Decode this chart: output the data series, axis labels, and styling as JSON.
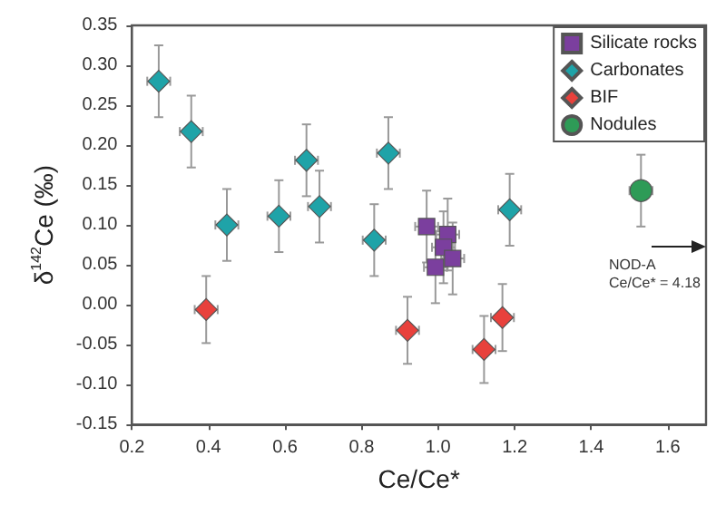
{
  "chart_data": {
    "type": "scatter",
    "xlabel": "Ce/Ce*",
    "ylabel": "δ$^{142}$Ce (‰)",
    "xlim": [
      0.2,
      1.7
    ],
    "xticks": [
      0.2,
      0.4,
      0.6,
      0.8,
      {
        "value": 1,
        "label": "1.0"
      },
      1.2,
      1.4,
      1.6
    ],
    "ylim": [
      -0.15,
      0.35
    ],
    "yticks": [
      -0.15,
      {
        "value": -0.1,
        "label": "-0.10"
      },
      -0.05,
      {
        "value": 0,
        "label": "0.00"
      },
      0.05,
      {
        "value": 0.1,
        "label": "0.10"
      },
      0.15,
      {
        "value": 0.2,
        "label": "0.20"
      },
      0.25,
      {
        "value": 0.3,
        "label": "0.30"
      },
      0.35
    ],
    "grid": false,
    "legend": "top right",
    "annotations": [
      "NOD-A\nCe/Ce* = 4.18"
    ],
    "series": [
      {
        "name": "Silicate rocks",
        "color": "#7b3f9e",
        "marker": "square",
        "x": [
          0.97,
          1.025,
          1.014,
          1.038,
          0.993
        ],
        "values": [
          0.098,
          0.088,
          0.072,
          0.058,
          0.047
        ],
        "errors": [
          0.045,
          0.045,
          0.045,
          0.045,
          0.045
        ],
        "xerrors": [
          0.03,
          0.03,
          0.03,
          0.03,
          0.03
        ]
      },
      {
        "name": "Carbonates",
        "color": "#1fa3a8",
        "marker": "diamond",
        "x": [
          0.27,
          0.355,
          0.448,
          0.584,
          0.656,
          0.69,
          0.833,
          0.87,
          1.187
        ],
        "values": [
          0.28,
          0.217,
          0.1,
          0.111,
          0.181,
          0.123,
          0.081,
          0.19,
          0.119
        ],
        "errors": [
          0.045,
          0.045,
          0.045,
          0.045,
          0.045,
          0.045,
          0.045,
          0.045,
          0.045
        ],
        "xerrors": [
          0.03,
          0.03,
          0.03,
          0.03,
          0.03,
          0.03,
          0.03,
          0.03,
          0.03
        ]
      },
      {
        "name": "BIF",
        "color": "#e8413c",
        "marker": "diamond",
        "x": [
          0.394,
          0.92,
          1.12,
          1.168
        ],
        "values": [
          -0.006,
          -0.032,
          -0.056,
          -0.016
        ],
        "errors": [
          0.042,
          0.042,
          0.042,
          0.042
        ],
        "xerrors": [
          0.03,
          0.03,
          0.03,
          0.03
        ]
      },
      {
        "name": "Nodules",
        "color": "#2e9b57",
        "marker": "circle",
        "x": [
          1.53
        ],
        "values": [
          0.143
        ],
        "errors": [
          0.045
        ],
        "xerrors": [
          0.03
        ]
      }
    ]
  }
}
